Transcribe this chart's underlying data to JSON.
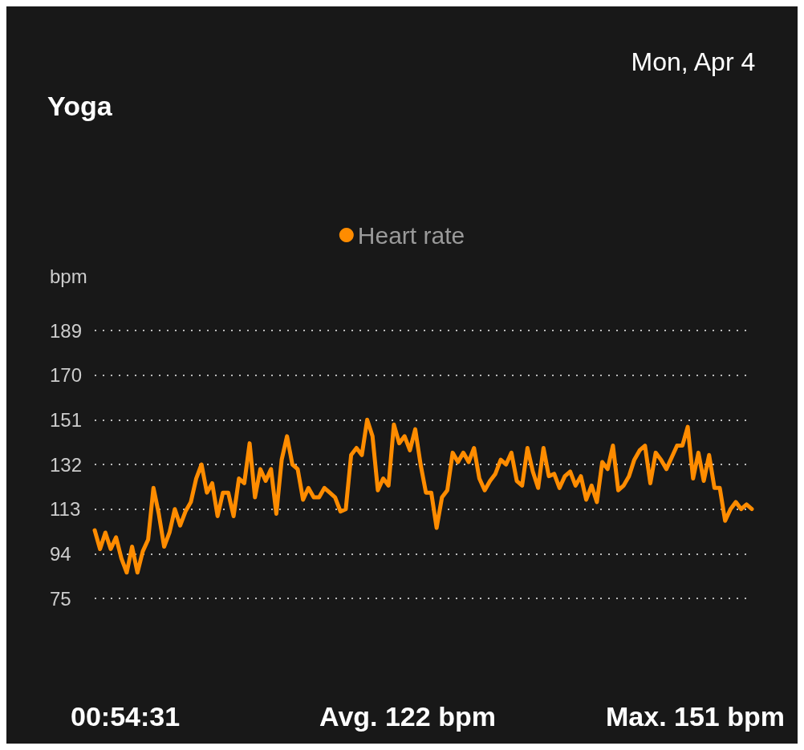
{
  "chart_data": {
    "type": "line",
    "title": "Yoga",
    "subtitle": "Mon, Apr 4",
    "ylabel": "bpm",
    "annotations": [
      "00:54:31",
      "Avg. 122 bpm",
      "Max. 151 bpm"
    ],
    "categories": [
      null,
      null,
      null,
      null,
      null,
      null,
      null,
      null,
      null,
      null,
      null,
      null,
      null,
      null,
      null,
      null,
      null,
      null,
      null,
      null,
      null,
      null,
      null,
      null,
      null,
      null,
      null,
      null,
      null,
      null,
      null,
      null,
      null,
      null,
      null,
      null,
      null,
      null,
      null,
      null,
      null,
      null,
      null,
      null,
      null,
      null,
      null,
      null,
      null,
      null,
      null,
      null,
      null,
      null,
      null,
      null,
      null,
      null,
      null,
      null,
      null,
      null,
      null,
      null,
      null,
      null,
      null,
      null,
      null,
      null,
      null,
      null,
      null,
      null,
      null,
      null,
      null,
      null,
      null,
      null,
      null,
      null,
      null,
      null,
      null,
      null,
      null,
      null,
      null,
      null,
      null,
      null,
      null,
      null,
      null,
      null,
      null,
      null,
      null,
      null,
      null,
      null,
      null,
      null,
      null,
      null,
      null,
      null,
      null,
      null,
      null,
      null,
      null,
      null,
      null,
      null,
      null,
      null,
      null,
      null,
      null,
      null,
      null,
      null
    ],
    "series": [
      {
        "name": "Heart rate",
        "color": "#ff8c00",
        "values": [
          104,
          96,
          103,
          96,
          101,
          92,
          86,
          97,
          86,
          95,
          100,
          122,
          111,
          97,
          103,
          113,
          106,
          112,
          116,
          126,
          132,
          120,
          124,
          110,
          120,
          120,
          110,
          126,
          124,
          141,
          118,
          130,
          125,
          130,
          111,
          134,
          144,
          132,
          130,
          117,
          122,
          118,
          118,
          122,
          120,
          118,
          112,
          113,
          136,
          139,
          136,
          151,
          144,
          121,
          126,
          123,
          149,
          141,
          144,
          138,
          147,
          132,
          120,
          120,
          105,
          118,
          121,
          137,
          133,
          137,
          133,
          139,
          126,
          121,
          125,
          128,
          134,
          132,
          137,
          125,
          123,
          139,
          129,
          122,
          139,
          127,
          128,
          122,
          127,
          129,
          123,
          127,
          117,
          123,
          116,
          133,
          130,
          140,
          121,
          123,
          127,
          134,
          138,
          140,
          124,
          137,
          134,
          130,
          135,
          140,
          140,
          148,
          126,
          137,
          125,
          136,
          122,
          122,
          108,
          113,
          116,
          113,
          115,
          113
        ]
      }
    ],
    "ylim": [
      75,
      189
    ],
    "yticks": [
      75,
      94,
      113,
      132,
      151,
      170,
      189
    ],
    "grid": "y",
    "legend": "top",
    "tick_labels": "y",
    "line_style": "solid"
  }
}
